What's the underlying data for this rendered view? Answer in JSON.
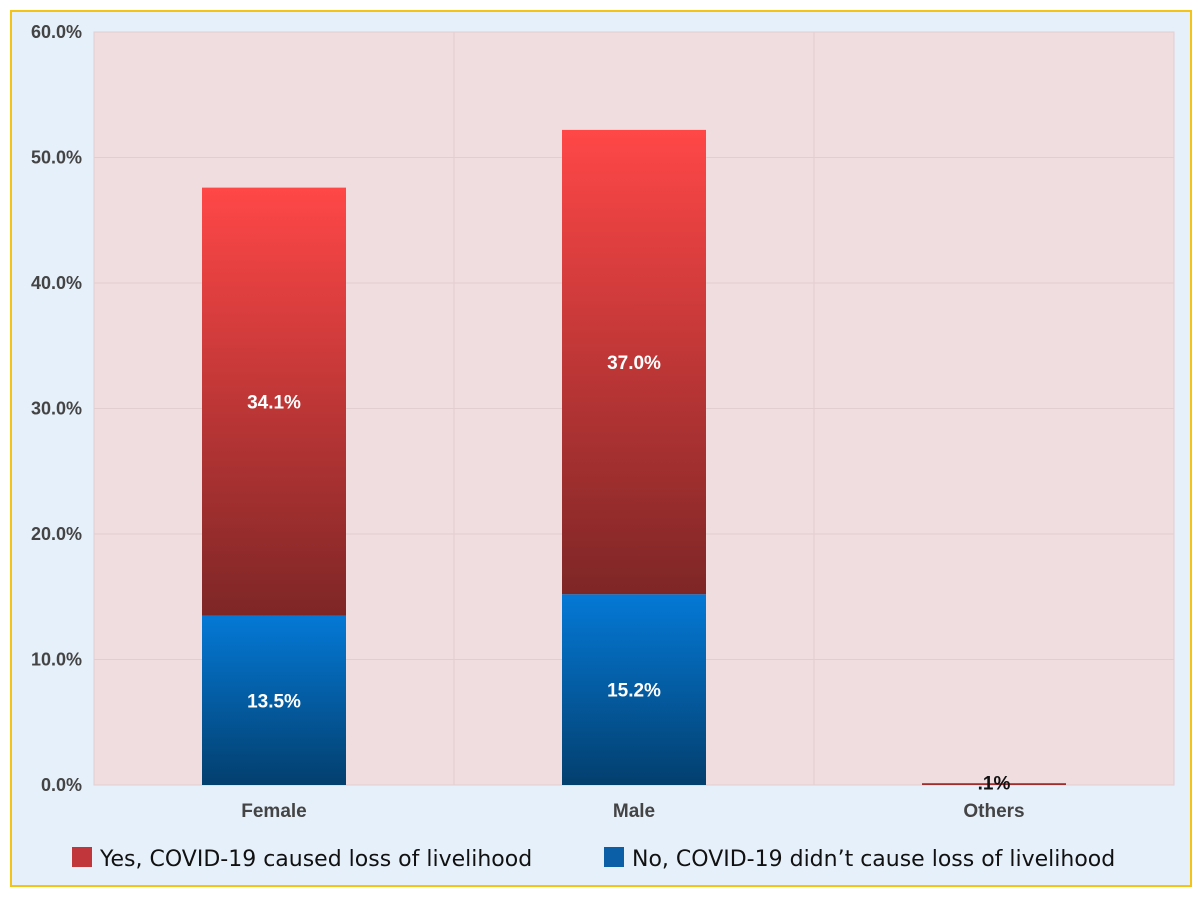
{
  "chart_data": {
    "type": "bar",
    "stacked": true,
    "categories": [
      "Female",
      "Male",
      "Others"
    ],
    "series": [
      {
        "name": "No, COVID-19 didn’t cause loss of livelihood",
        "values": [
          13.5,
          15.2,
          0
        ],
        "labels": [
          "13.5%",
          "15.2%",
          ""
        ],
        "color": "#0a5fa6",
        "gradient": [
          "#0479d6",
          "#033f6e"
        ]
      },
      {
        "name": "Yes, COVID-19 caused loss of livelihood",
        "values": [
          34.1,
          37.0,
          0.1
        ],
        "labels": [
          "34.1%",
          "37.0%",
          ".1%"
        ],
        "color": "#c0363a",
        "gradient": [
          "#ff4747",
          "#7e2626"
        ]
      }
    ],
    "ylim": [
      0,
      60
    ],
    "yticks": [
      0,
      10,
      20,
      30,
      40,
      50,
      60
    ],
    "ytick_labels": [
      "0.0%",
      "10.0%",
      "20.0%",
      "30.0%",
      "40.0%",
      "50.0%",
      "60.0%"
    ],
    "grid": true,
    "legend_position": "bottom",
    "legend_order": [
      1,
      0
    ],
    "title": "",
    "xlabel": "",
    "ylabel": ""
  },
  "colors": {
    "frame_background": "#e6f0fa",
    "frame_border": "#f3c316",
    "plot_background": "#f0dde0",
    "grid": "#e2cdd1"
  }
}
